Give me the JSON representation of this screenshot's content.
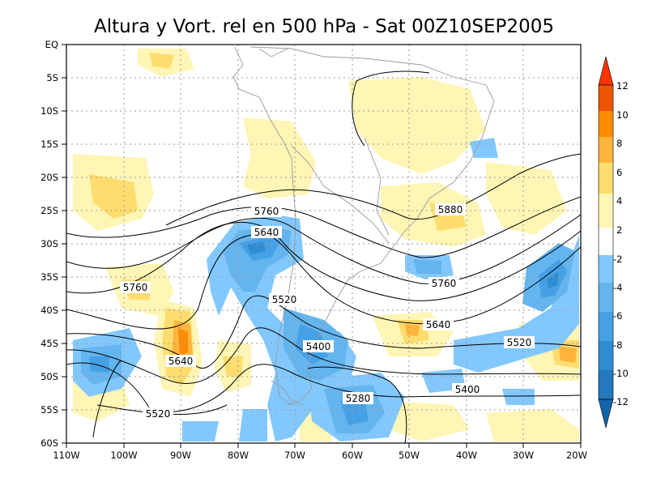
{
  "title": "Altura y Vort. rel en 500 hPa - Sat 00Z10SEP2005",
  "map": {
    "lat_labels": [
      "EQ",
      "5S",
      "10S",
      "15S",
      "20S",
      "25S",
      "30S",
      "35S",
      "40S",
      "45S",
      "50S",
      "55S",
      "60S"
    ],
    "lon_labels": [
      "110W",
      "100W",
      "90W",
      "80W",
      "70W",
      "60W",
      "50W",
      "40W",
      "30W",
      "20W"
    ],
    "contour_labels": [
      "5880",
      "5760",
      "5760",
      "5760",
      "5640",
      "5640",
      "5640",
      "5520",
      "5520",
      "5520",
      "5400",
      "5400",
      "5280"
    ]
  },
  "colorbar": {
    "labels": [
      "12",
      "10",
      "8",
      "6",
      "4",
      "2",
      "-2",
      "-4",
      "-6",
      "-8",
      "-10",
      "-12"
    ],
    "colors": {
      "red_top": "#ff3300",
      "orange_dark": "#ee5500",
      "orange": "#ff8c00",
      "orange_light": "#ffb43c",
      "yellow": "#ffdc6e",
      "pale_yellow": "#fff5b4",
      "pale_blue": "#82c8ff",
      "light_blue": "#64b4ee",
      "mid_blue": "#46a0e6",
      "blue": "#2d8cd2",
      "dark_blue": "#2378be",
      "navy": "#1464aa"
    }
  }
}
